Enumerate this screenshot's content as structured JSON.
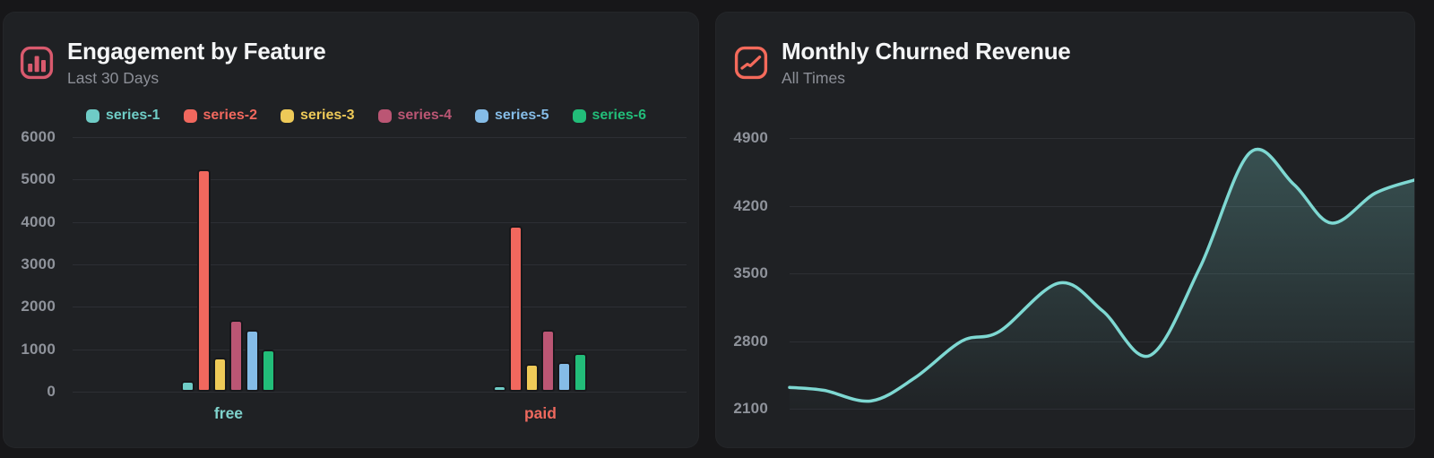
{
  "colors": {
    "page_bg": "#171719",
    "card_bg": "#1f2124",
    "grid": "#2d2f34",
    "axis_text": "#8f939b",
    "title": "#f4f5f6",
    "subtitle": "#8c8f97",
    "left_icon": "#d95a6e",
    "right_icon": "#f46a5b",
    "line": "#7ed8d2"
  },
  "left_card": {
    "title": "Engagement by Feature",
    "subtitle": "Last 30 Days",
    "icon": "bar-chart-icon"
  },
  "right_card": {
    "title": "Monthly Churned Revenue",
    "subtitle": "All Times",
    "icon": "line-chart-icon"
  },
  "chart_data": [
    {
      "type": "bar",
      "title": "Engagement by Feature",
      "subtitle": "Last 30 Days",
      "categories": [
        "free",
        "paid"
      ],
      "category_colors": [
        "#7fd2cc",
        "#ee695e"
      ],
      "series": [
        {
          "name": "series-1",
          "color": "#6fccc6",
          "values": [
            250,
            150
          ]
        },
        {
          "name": "series-2",
          "color": "#f1685e",
          "values": [
            5250,
            3900
          ]
        },
        {
          "name": "series-3",
          "color": "#eeca58",
          "values": [
            800,
            650
          ]
        },
        {
          "name": "series-4",
          "color": "#bb5674",
          "values": [
            1700,
            1450
          ]
        },
        {
          "name": "series-5",
          "color": "#85bce7",
          "values": [
            1450,
            700
          ]
        },
        {
          "name": "series-6",
          "color": "#22bd79",
          "values": [
            1000,
            900
          ]
        }
      ],
      "ylim": [
        0,
        6000
      ],
      "yticks": [
        0,
        1000,
        2000,
        3000,
        4000,
        5000,
        6000
      ],
      "grid": "horizontal",
      "legend_position": "top",
      "group_centers": [
        0.254,
        0.762
      ]
    },
    {
      "type": "area",
      "title": "Monthly Churned Revenue",
      "subtitle": "All Times",
      "ylim": [
        2100,
        4900
      ],
      "yticks": [
        2100,
        2800,
        3500,
        4200,
        4900
      ],
      "x": [
        0,
        0.055,
        0.13,
        0.2,
        0.275,
        0.335,
        0.43,
        0.5,
        0.575,
        0.655,
        0.735,
        0.805,
        0.865,
        0.935,
        1.0
      ],
      "values": [
        2320,
        2290,
        2180,
        2420,
        2800,
        2900,
        3400,
        3110,
        2650,
        3560,
        4750,
        4420,
        4020,
        4330,
        4470
      ],
      "line_color": "#7ed8d2",
      "fill_from": "rgba(126,216,210,0.26)",
      "fill_to": "rgba(126,216,210,0.01)",
      "grid": "horizontal",
      "legend_position": "none",
      "xlabel": "",
      "ylabel": ""
    }
  ]
}
